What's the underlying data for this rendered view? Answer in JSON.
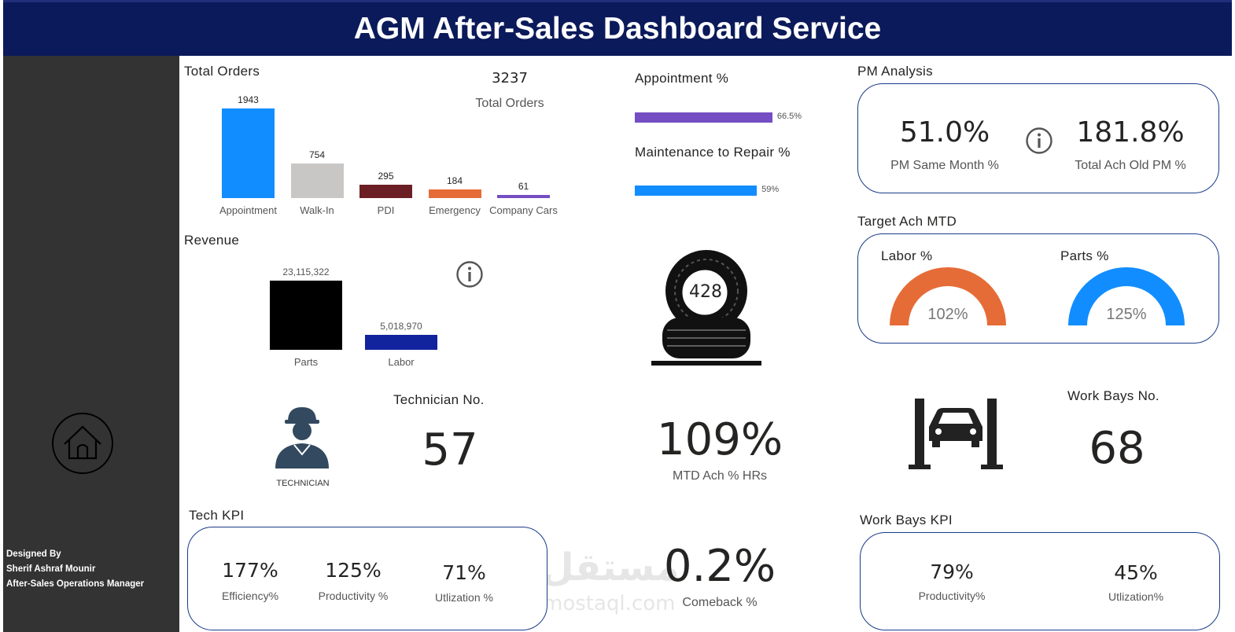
{
  "header": {
    "title": "AGM After-Sales Dashboard Service"
  },
  "sidebar": {
    "home_icon": "home-icon",
    "credit_line1": "Designed By",
    "credit_line2": "Sherif Ashraf Mounir",
    "credit_line3": "After-Sales Operations Manager"
  },
  "total_orders": {
    "title": "Total Orders",
    "card_value": "3237",
    "card_label": "Total Orders"
  },
  "revenue": {
    "title": "Revenue"
  },
  "chart_data": [
    {
      "type": "bar",
      "title": "Total Orders",
      "categories": [
        "Appointment",
        "Walk-In",
        "PDI",
        "Emergency",
        "Company Cars"
      ],
      "values": [
        1943,
        754,
        295,
        184,
        61
      ],
      "value_labels": [
        "1943",
        "754",
        "295",
        "184",
        "61"
      ],
      "colors": [
        "#118dff",
        "#c8c7c6",
        "#6b1f24",
        "#e66c37",
        "#744ec2"
      ],
      "ylim": [
        0,
        1943
      ]
    },
    {
      "type": "bar",
      "title": "Revenue",
      "categories": [
        "Parts",
        "Labor"
      ],
      "values": [
        23115322,
        5018970
      ],
      "value_labels": [
        "23,115,322",
        "5,018,970"
      ],
      "colors": [
        "#000000",
        "#12239e"
      ],
      "ylim": [
        0,
        23115322
      ]
    },
    {
      "type": "bar",
      "orientation": "horizontal",
      "categories": [
        "Appointment %",
        "Maintenance to Repair %"
      ],
      "values": [
        66.5,
        59
      ],
      "value_labels": [
        "66.5%",
        "59%"
      ],
      "colors": [
        "#744ec2",
        "#118dff"
      ]
    }
  ],
  "kpis": {
    "appointment_label": "Appointment %",
    "maintenance_label": "Maintenance to Repair %",
    "tire_value": "428",
    "mtd_value": "109%",
    "mtd_label": "MTD Ach % HRs",
    "comeback_value": "0.2%",
    "comeback_label": "Comeback %"
  },
  "pm_analysis": {
    "title": "PM Analysis",
    "same_month_value": "51.0%",
    "same_month_label": "PM Same Month %",
    "old_pm_value": "181.8%",
    "old_pm_label": "Total Ach Old PM %",
    "info_icon": "info-icon"
  },
  "target_ach": {
    "title": "Target Ach MTD",
    "labor_label": "Labor %",
    "labor_value": "102%",
    "labor_fill": 1.02,
    "labor_color": "#e66c37",
    "parts_label": "Parts %",
    "parts_value": "125%",
    "parts_fill": 1.25,
    "parts_color": "#118dff"
  },
  "technician": {
    "caption": "TECHNICIAN",
    "title": "Technician No.",
    "value": "57"
  },
  "work_bays": {
    "title": "Work Bays No.",
    "value": "68"
  },
  "tech_kpi": {
    "title": "Tech KPI",
    "efficiency_value": "177%",
    "efficiency_label": "Efficiency%",
    "productivity_value": "125%",
    "productivity_label": "Productivity %",
    "utilization_value": "71%",
    "utilization_label": "Utlization %"
  },
  "work_bays_kpi": {
    "title": "Work Bays KPI",
    "productivity_value": "79%",
    "productivity_label": "Productivity%",
    "utilization_value": "45%",
    "utilization_label": "Utlization%"
  },
  "watermark": {
    "arabic": "مستقل",
    "latin": "mostaql.com"
  },
  "colors": {
    "banner": "#0b1a5a",
    "sidebar": "#333333",
    "card_border": "#1a3a8a"
  }
}
